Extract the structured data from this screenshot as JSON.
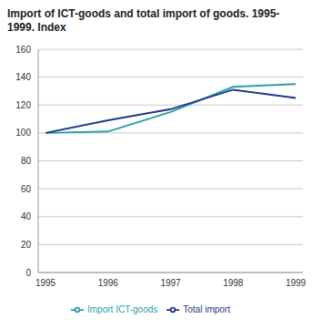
{
  "chart_data": {
    "type": "line",
    "title": "Import of ICT-goods and total import of goods. 1995-1999. Index",
    "categories": [
      "1995",
      "1996",
      "1997",
      "1998",
      "1999"
    ],
    "series": [
      {
        "name": "Import ICT-goods",
        "color": "#2a9fa6",
        "values": [
          100,
          101,
          115,
          133,
          135
        ]
      },
      {
        "name": "Total import",
        "color": "#1e3a84",
        "values": [
          100,
          109,
          117,
          131,
          125
        ]
      }
    ],
    "ylim": [
      0,
      160
    ],
    "yticks": [
      0,
      20,
      40,
      60,
      80,
      100,
      120,
      140,
      160
    ],
    "grid": true,
    "legend": "bottom"
  }
}
